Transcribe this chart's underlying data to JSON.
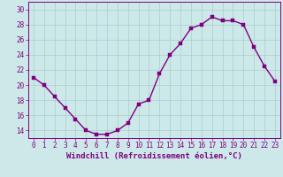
{
  "x": [
    0,
    1,
    2,
    3,
    4,
    5,
    6,
    7,
    8,
    9,
    10,
    11,
    12,
    13,
    14,
    15,
    16,
    17,
    18,
    19,
    20,
    21,
    22,
    23
  ],
  "y": [
    21,
    20,
    18.5,
    17,
    15.5,
    14,
    13.5,
    13.5,
    14,
    15,
    17.5,
    18,
    21.5,
    24,
    25.5,
    27.5,
    28,
    29,
    28.5,
    28.5,
    28,
    25,
    22.5,
    20.5
  ],
  "line_color": "#800080",
  "marker_color": "#800080",
  "bg_color": "#cce8e8",
  "grid_color": "#aacece",
  "xlabel": "Windchill (Refroidissement éolien,°C)",
  "ylim": [
    13,
    31
  ],
  "xlim_min": -0.5,
  "xlim_max": 23.5,
  "yticks": [
    14,
    16,
    18,
    20,
    22,
    24,
    26,
    28,
    30
  ],
  "xticks": [
    0,
    1,
    2,
    3,
    4,
    5,
    6,
    7,
    8,
    9,
    10,
    11,
    12,
    13,
    14,
    15,
    16,
    17,
    18,
    19,
    20,
    21,
    22,
    23
  ],
  "tick_fontsize": 5.5,
  "label_fontsize": 6.5,
  "marker_size": 2.5,
  "line_width": 1.0
}
